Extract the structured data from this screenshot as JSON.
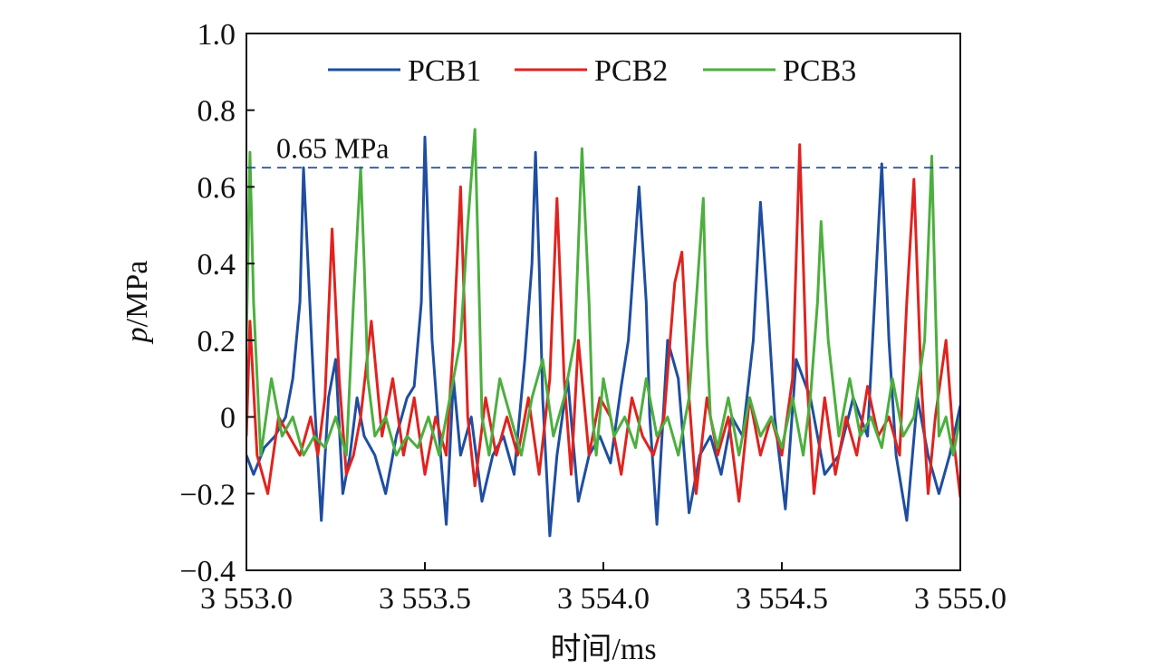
{
  "chart_data": {
    "type": "line",
    "xlabel": "时间/ms",
    "ylabel_italic": "p",
    "ylabel_rest": "/MPa",
    "xlim": [
      3553.0,
      3555.0
    ],
    "ylim": [
      -0.4,
      1.0
    ],
    "x_ticks": [
      3553.0,
      3553.5,
      3554.0,
      3554.5,
      3555.0
    ],
    "x_tick_labels": [
      "3 553.0",
      "3 553.5",
      "3 554.0",
      "3 554.5",
      "3 555.0"
    ],
    "y_ticks": [
      -0.4,
      -0.2,
      0,
      0.2,
      0.4,
      0.6,
      0.8,
      1.0
    ],
    "y_tick_labels": [
      "−0.4",
      "−0.2",
      "0",
      "0.2",
      "0.4",
      "0.6",
      "0.8",
      "1.0"
    ],
    "legend_position": "top",
    "reference_line": {
      "y": 0.65,
      "label": "0.65 MPa",
      "color": "#1f4e9c",
      "style": "dashed"
    },
    "series": [
      {
        "name": "PCB1",
        "color": "#1f4ea1",
        "x": [
          3553.0,
          3553.02,
          3553.05,
          3553.08,
          3553.11,
          3553.13,
          3553.15,
          3553.16,
          3553.17,
          3553.19,
          3553.21,
          3553.23,
          3553.25,
          3553.27,
          3553.29,
          3553.31,
          3553.33,
          3553.36,
          3553.39,
          3553.42,
          3553.45,
          3553.47,
          3553.49,
          3553.5,
          3553.52,
          3553.54,
          3553.56,
          3553.58,
          3553.6,
          3553.63,
          3553.66,
          3553.69,
          3553.72,
          3553.75,
          3553.78,
          3553.8,
          3553.81,
          3553.82,
          3553.83,
          3553.85,
          3553.87,
          3553.9,
          3553.93,
          3553.96,
          3553.99,
          3554.02,
          3554.05,
          3554.07,
          3554.1,
          3554.12,
          3554.13,
          3554.15,
          3554.18,
          3554.21,
          3554.24,
          3554.27,
          3554.3,
          3554.33,
          3554.36,
          3554.39,
          3554.42,
          3554.44,
          3554.46,
          3554.48,
          3554.51,
          3554.54,
          3554.58,
          3554.62,
          3554.66,
          3554.7,
          3554.74,
          3554.76,
          3554.78,
          3554.8,
          3554.82,
          3554.85,
          3554.88,
          3554.91,
          3554.94,
          3554.97,
          3555.0
        ],
        "y": [
          -0.1,
          -0.15,
          -0.08,
          -0.05,
          0.0,
          0.1,
          0.3,
          0.65,
          0.45,
          0.05,
          -0.27,
          0.05,
          0.15,
          -0.2,
          -0.1,
          0.05,
          -0.05,
          -0.1,
          -0.2,
          -0.05,
          0.05,
          0.08,
          0.3,
          0.73,
          0.2,
          -0.05,
          -0.28,
          0.1,
          -0.1,
          0.0,
          -0.22,
          -0.1,
          -0.05,
          -0.15,
          0.15,
          0.4,
          0.69,
          0.4,
          0.05,
          -0.31,
          -0.1,
          0.1,
          -0.22,
          -0.1,
          -0.05,
          -0.12,
          0.08,
          0.2,
          0.6,
          0.3,
          0.0,
          -0.28,
          0.2,
          0.1,
          -0.25,
          -0.1,
          -0.05,
          -0.15,
          0.0,
          -0.05,
          0.2,
          0.56,
          0.3,
          0.0,
          -0.24,
          0.15,
          0.05,
          -0.15,
          -0.1,
          0.05,
          -0.05,
          0.3,
          0.66,
          0.2,
          -0.1,
          -0.27,
          0.05,
          -0.1,
          -0.2,
          -0.1,
          0.03
        ]
      },
      {
        "name": "PCB2",
        "color": "#e0231f",
        "x": [
          3553.0,
          3553.01,
          3553.03,
          3553.06,
          3553.09,
          3553.12,
          3553.15,
          3553.18,
          3553.2,
          3553.22,
          3553.24,
          3553.26,
          3553.28,
          3553.3,
          3553.32,
          3553.35,
          3553.38,
          3553.41,
          3553.44,
          3553.47,
          3553.5,
          3553.53,
          3553.56,
          3553.58,
          3553.6,
          3553.62,
          3553.64,
          3553.67,
          3553.7,
          3553.73,
          3553.76,
          3553.79,
          3553.82,
          3553.85,
          3553.87,
          3553.89,
          3553.91,
          3553.93,
          3553.96,
          3553.99,
          3554.02,
          3554.05,
          3554.08,
          3554.11,
          3554.14,
          3554.17,
          3554.2,
          3554.22,
          3554.24,
          3554.26,
          3554.29,
          3554.32,
          3554.35,
          3554.38,
          3554.41,
          3554.44,
          3554.47,
          3554.5,
          3554.53,
          3554.55,
          3554.57,
          3554.59,
          3554.62,
          3554.65,
          3554.68,
          3554.71,
          3554.74,
          3554.77,
          3554.8,
          3554.83,
          3554.85,
          3554.87,
          3554.89,
          3554.91,
          3554.93,
          3554.96,
          3554.98,
          3555.0
        ],
        "y": [
          -0.05,
          0.25,
          -0.1,
          -0.2,
          0.0,
          -0.05,
          -0.1,
          0.0,
          -0.1,
          0.05,
          0.49,
          0.1,
          -0.15,
          -0.1,
          0.0,
          0.25,
          -0.05,
          0.1,
          -0.1,
          0.05,
          -0.15,
          0.0,
          -0.1,
          0.2,
          0.6,
          0.0,
          -0.18,
          0.05,
          -0.1,
          0.0,
          -0.1,
          0.05,
          -0.15,
          0.1,
          0.57,
          0.1,
          -0.15,
          0.2,
          -0.1,
          0.05,
          0.0,
          -0.15,
          0.05,
          -0.05,
          -0.1,
          0.0,
          0.35,
          0.43,
          0.05,
          -0.2,
          0.05,
          -0.1,
          0.0,
          -0.22,
          0.05,
          -0.1,
          0.0,
          -0.1,
          0.1,
          0.71,
          0.1,
          -0.2,
          0.05,
          -0.15,
          0.0,
          -0.1,
          0.08,
          -0.05,
          0.0,
          -0.1,
          0.3,
          0.62,
          0.1,
          -0.2,
          0.0,
          0.2,
          -0.05,
          -0.21
        ]
      },
      {
        "name": "PCB3",
        "color": "#4caf3e",
        "x": [
          3553.0,
          3553.01,
          3553.02,
          3553.04,
          3553.07,
          3553.1,
          3553.13,
          3553.16,
          3553.19,
          3553.22,
          3553.25,
          3553.28,
          3553.3,
          3553.32,
          3553.33,
          3553.34,
          3553.36,
          3553.39,
          3553.42,
          3553.45,
          3553.48,
          3553.51,
          3553.54,
          3553.57,
          3553.6,
          3553.62,
          3553.64,
          3553.65,
          3553.66,
          3553.68,
          3553.71,
          3553.74,
          3553.77,
          3553.8,
          3553.83,
          3553.86,
          3553.89,
          3553.92,
          3553.94,
          3553.96,
          3553.97,
          3553.98,
          3554.0,
          3554.03,
          3554.06,
          3554.09,
          3554.12,
          3554.15,
          3554.18,
          3554.21,
          3554.24,
          3554.26,
          3554.28,
          3554.29,
          3554.3,
          3554.32,
          3554.35,
          3554.38,
          3554.41,
          3554.44,
          3554.47,
          3554.5,
          3554.53,
          3554.56,
          3554.58,
          3554.6,
          3554.61,
          3554.63,
          3554.66,
          3554.69,
          3554.72,
          3554.75,
          3554.78,
          3554.81,
          3554.84,
          3554.87,
          3554.9,
          3554.92,
          3554.93,
          3554.94,
          3554.96,
          3554.98,
          3555.0
        ],
        "y": [
          0.2,
          0.69,
          0.3,
          -0.1,
          0.1,
          -0.05,
          0.0,
          -0.1,
          -0.05,
          -0.08,
          0.0,
          -0.1,
          0.3,
          0.65,
          0.4,
          0.1,
          -0.05,
          0.0,
          -0.1,
          -0.05,
          -0.08,
          0.0,
          -0.1,
          0.05,
          0.2,
          0.5,
          0.75,
          0.4,
          0.0,
          -0.1,
          0.1,
          0.0,
          -0.1,
          0.05,
          0.15,
          -0.05,
          0.05,
          0.2,
          0.7,
          0.3,
          0.0,
          -0.1,
          0.1,
          -0.05,
          0.0,
          -0.08,
          0.1,
          -0.05,
          0.0,
          -0.1,
          0.05,
          0.3,
          0.57,
          0.2,
          0.0,
          -0.08,
          0.05,
          -0.1,
          0.05,
          -0.05,
          0.0,
          -0.08,
          0.05,
          -0.1,
          0.05,
          0.3,
          0.51,
          0.2,
          -0.05,
          0.1,
          -0.05,
          0.0,
          -0.08,
          0.1,
          -0.05,
          0.0,
          0.2,
          0.68,
          0.3,
          -0.05,
          0.0,
          -0.1,
          0.0
        ]
      }
    ]
  }
}
